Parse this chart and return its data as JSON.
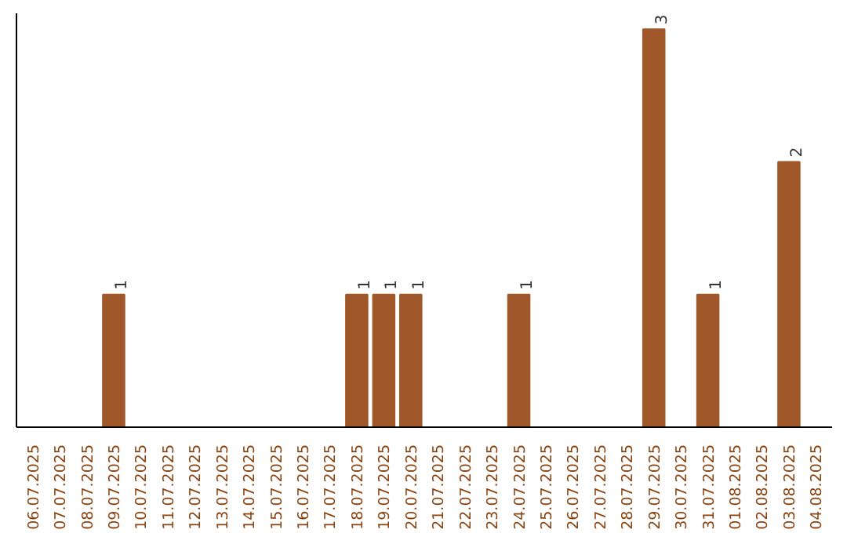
{
  "chart_data": {
    "type": "bar",
    "categories": [
      "06.07.2025",
      "07.07.2025",
      "08.07.2025",
      "09.07.2025",
      "10.07.2025",
      "11.07.2025",
      "12.07.2025",
      "13.07.2025",
      "14.07.2025",
      "15.07.2025",
      "16.07.2025",
      "17.07.2025",
      "18.07.2025",
      "19.07.2025",
      "20.07.2025",
      "21.07.2025",
      "22.07.2025",
      "23.07.2025",
      "24.07.2025",
      "25.07.2025",
      "26.07.2025",
      "27.07.2025",
      "28.07.2025",
      "29.07.2025",
      "30.07.2025",
      "31.07.2025",
      "01.08.2025",
      "02.08.2025",
      "03.08.2025",
      "04.08.2025"
    ],
    "values": [
      0,
      0,
      0,
      1,
      0,
      0,
      0,
      0,
      0,
      0,
      0,
      0,
      1,
      1,
      1,
      0,
      0,
      0,
      1,
      0,
      0,
      0,
      0,
      3,
      0,
      1,
      0,
      0,
      2,
      0
    ],
    "value_labels": [
      null,
      null,
      null,
      "1",
      null,
      null,
      null,
      null,
      null,
      null,
      null,
      null,
      "1",
      "1",
      "1",
      null,
      null,
      null,
      "1",
      null,
      null,
      null,
      null,
      "3",
      null,
      "1",
      null,
      null,
      "2",
      null
    ],
    "color": "#a0582a",
    "grid": false,
    "tick_labels": "x"
  }
}
